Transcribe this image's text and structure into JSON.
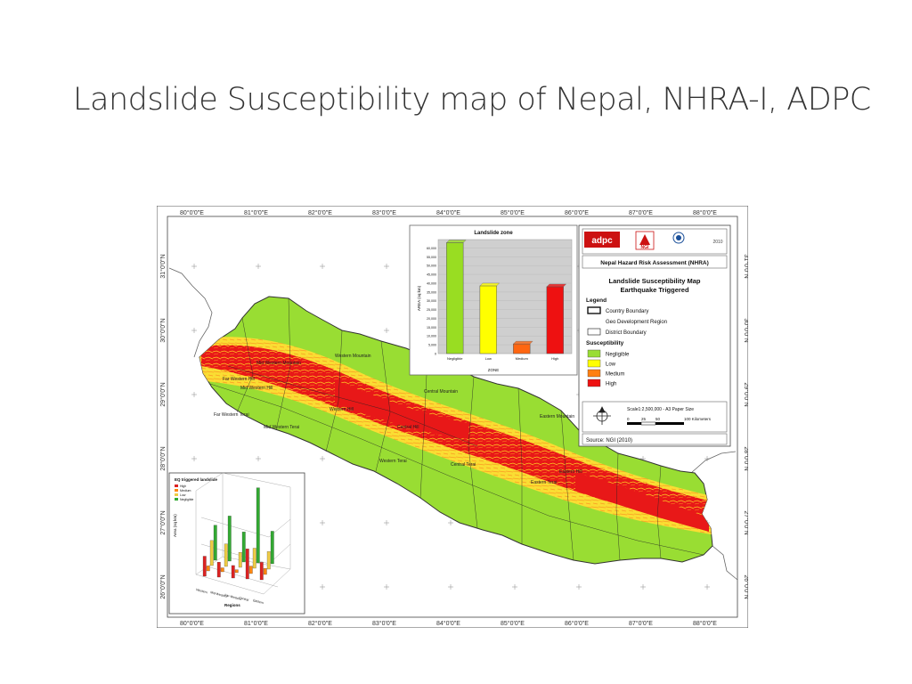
{
  "slide": {
    "title": "Landslide Susceptibility map of Nepal, NHRA-I, ADPC"
  },
  "map": {
    "longitudes": [
      "80°0'0\"E",
      "81°0'0\"E",
      "82°0'0\"E",
      "83°0'0\"E",
      "84°0'0\"E",
      "85°0'0\"E",
      "86°0'0\"E",
      "87°0'0\"E",
      "88°0'0\"E"
    ],
    "latitudes": [
      "31°0'0\"N",
      "30°0'0\"N",
      "29°0'0\"N",
      "28°0'0\"N",
      "27°0'0\"N",
      "26°0'0\"N"
    ],
    "region_labels": [
      "Far Western Hill",
      "Mid Western Mountain",
      "Mid Western Hill",
      "Far Western Terai",
      "Mid Western Terai",
      "Western Mountain",
      "Western Hill",
      "Central Hill",
      "Central Mountain",
      "Eastern Mountain",
      "Eastern Hill",
      "Central Terai",
      "Eastern Terai",
      "Western Terai"
    ]
  },
  "info_panel": {
    "logos": [
      "adpc",
      "NGI"
    ],
    "year": "2010",
    "org_title": "Nepal Hazard Risk Assessment (NHRA)",
    "map_title_line1": "Landslide Susceptibility Map",
    "map_title_line2": "Earthquake Triggered",
    "legend_heading": "Legend",
    "boundary_items": [
      "Country Boundary",
      "Geo Development Region",
      "District Boundary"
    ],
    "susceptibility_heading": "Susceptibility",
    "susceptibility_items": [
      {
        "label": "Negligible",
        "color": "#99dd33"
      },
      {
        "label": "Low",
        "color": "#ffff00"
      },
      {
        "label": "Medium",
        "color": "#ff7f11"
      },
      {
        "label": "High",
        "color": "#ee1111"
      }
    ],
    "scale_text": "Scale1:2,500,000    - A3 Paper Size",
    "scale_ticks": [
      "0",
      "25",
      "50",
      "100 Kilometers"
    ],
    "source": "Source: NGI (2010)"
  },
  "chart_data": [
    {
      "type": "bar",
      "title": "Landslide zone",
      "xlabel": "ZONE",
      "ylabel": "AREA (sq km)",
      "categories": [
        "Negligible",
        "Low",
        "Medium",
        "High"
      ],
      "values": [
        63000,
        38500,
        5500,
        38000
      ],
      "colors": [
        "#99dd22",
        "#ffff00",
        "#ff6611",
        "#ee1111"
      ],
      "ylim": [
        0,
        60000
      ],
      "yticks": [
        "60,000",
        "55,000",
        "50,000",
        "45,000",
        "40,000",
        "35,000",
        "30,000",
        "25,000",
        "20,000",
        "15,000",
        "10,000",
        "5,000",
        "0"
      ]
    },
    {
      "type": "bar",
      "title": "EQ triggered landslide",
      "xlabel": "Regions",
      "ylabel": "Area (sq km)",
      "categories": [
        "Western",
        "Mid-Western",
        "Far-Western",
        "Central",
        "Eastern"
      ],
      "series": [
        {
          "name": "High",
          "values": [
            4000,
            3000,
            2500,
            6000,
            3500
          ],
          "color": "#dd2222"
        },
        {
          "name": "Medium",
          "values": [
            1000,
            800,
            600,
            1500,
            1200
          ],
          "color": "#ff8811"
        },
        {
          "name": "Low",
          "values": [
            5000,
            4500,
            3000,
            4000,
            3500
          ],
          "color": "#eecc44"
        },
        {
          "name": "Negligible",
          "values": [
            7000,
            9000,
            6000,
            15000,
            6500
          ],
          "color": "#33aa33"
        }
      ]
    }
  ]
}
